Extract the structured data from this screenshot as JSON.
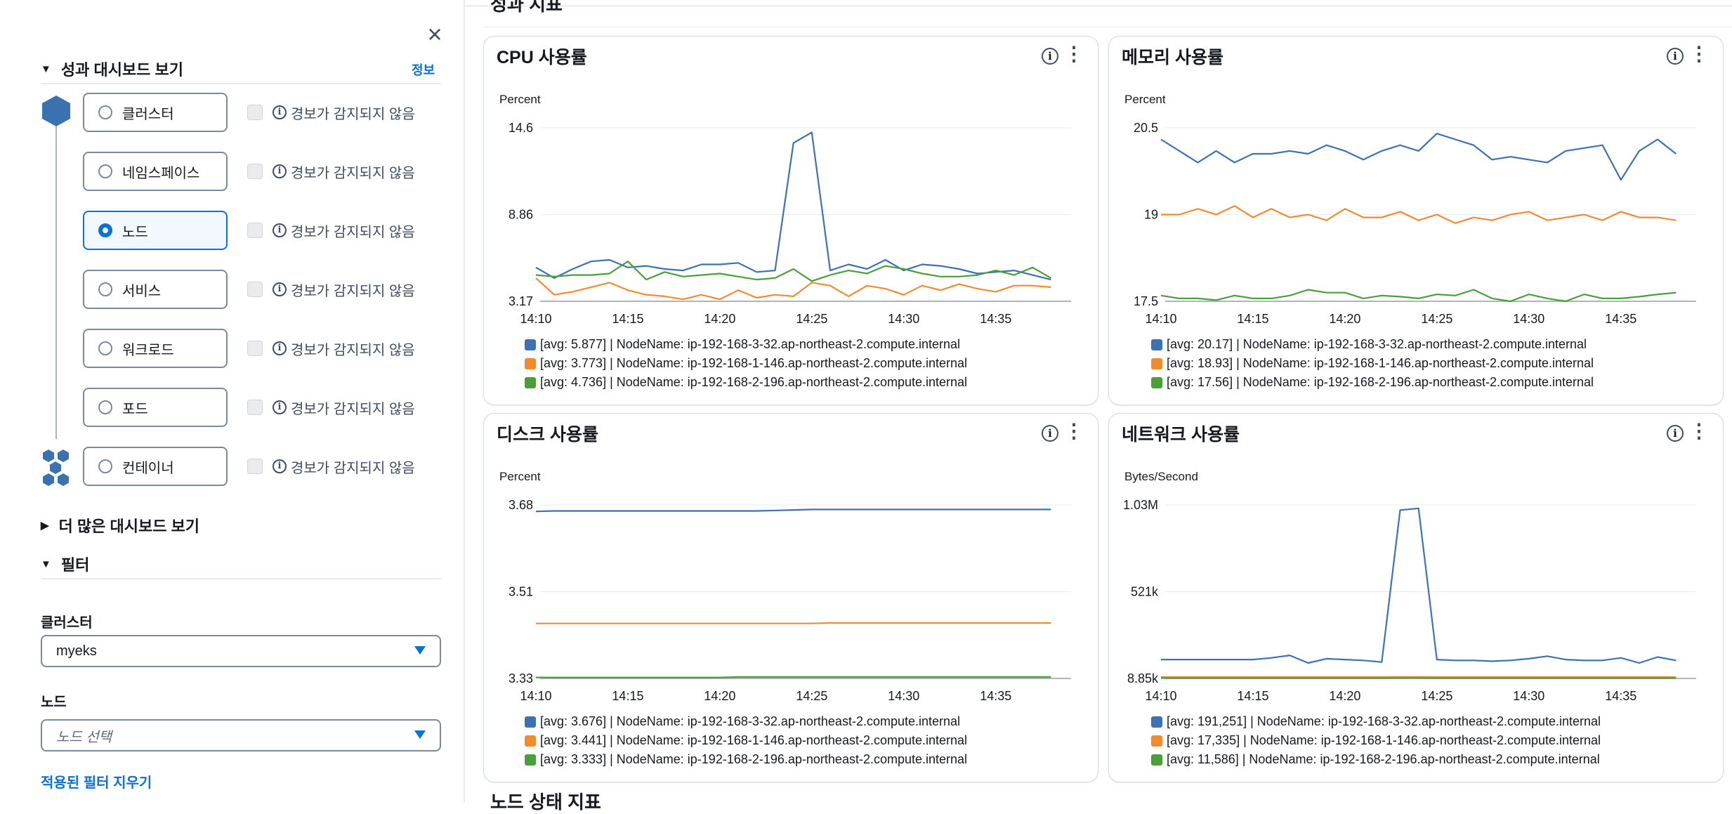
{
  "sidebar": {
    "perf_section": "성과 대시보드 보기",
    "info_link": "정보",
    "levels": [
      {
        "label": "클러스터",
        "alarm": "경보가 감지되지 않음",
        "selected": false
      },
      {
        "label": "네임스페이스",
        "alarm": "경보가 감지되지 않음",
        "selected": false
      },
      {
        "label": "노드",
        "alarm": "경보가 감지되지 않음",
        "selected": true
      },
      {
        "label": "서비스",
        "alarm": "경보가 감지되지 않음",
        "selected": false
      },
      {
        "label": "워크로드",
        "alarm": "경보가 감지되지 않음",
        "selected": false
      },
      {
        "label": "포드",
        "alarm": "경보가 감지되지 않음",
        "selected": false
      },
      {
        "label": "컨테이너",
        "alarm": "경보가 감지되지 않음",
        "selected": false
      }
    ],
    "more_section": "더 많은 대시보드 보기",
    "filter_section": "필터",
    "cluster_label": "클러스터",
    "cluster_value": "myeks",
    "node_label": "노드",
    "node_placeholder": "노드 선택",
    "clear_filters": "적용된 필터 지우기"
  },
  "main": {
    "section_title": "성과 지표",
    "next_section_title": "노드 상태 지표"
  },
  "colors": {
    "blue": "#3d71b2",
    "orange": "#f28b30",
    "green": "#4b9e3c",
    "accent": "#0972d3"
  },
  "chart_data": [
    {
      "type": "line",
      "title": "CPU 사용률",
      "ylabel": "Percent",
      "ylim": [
        3.17,
        14.6
      ],
      "yticks": [
        "14.6",
        "8.86",
        "3.17"
      ],
      "xticks": [
        "14:10",
        "14:15",
        "14:20",
        "14:25",
        "14:30",
        "14:35"
      ],
      "x": [
        "14:10",
        "14:11",
        "14:12",
        "14:13",
        "14:14",
        "14:15",
        "14:16",
        "14:17",
        "14:18",
        "14:19",
        "14:20",
        "14:21",
        "14:22",
        "14:23",
        "14:24",
        "14:25",
        "14:26",
        "14:27",
        "14:28",
        "14:29",
        "14:30",
        "14:31",
        "14:32",
        "14:33",
        "14:34",
        "14:35",
        "14:36",
        "14:37",
        "14:38"
      ],
      "series": [
        {
          "color": "#3d71b2",
          "legend": "[avg: 5.877] | NodeName: ip-192-168-3-32.ap-northeast-2.compute.internal",
          "values": [
            5.4,
            4.7,
            5.3,
            5.8,
            5.9,
            5.4,
            5.5,
            5.3,
            5.2,
            5.6,
            5.6,
            5.7,
            5.1,
            5.2,
            13.6,
            14.3,
            5.2,
            5.6,
            5.3,
            5.9,
            5.2,
            5.6,
            5.5,
            5.3,
            5.0,
            5.1,
            5.2,
            4.9,
            4.6
          ]
        },
        {
          "color": "#f28b30",
          "legend": "[avg: 3.773] | NodeName: ip-192-168-1-146.ap-northeast-2.compute.internal",
          "values": [
            4.7,
            3.6,
            3.8,
            4.1,
            4.4,
            3.9,
            3.6,
            3.5,
            3.3,
            3.6,
            3.3,
            3.9,
            3.4,
            3.6,
            3.5,
            4.4,
            4.2,
            3.5,
            4.2,
            4.0,
            3.6,
            4.2,
            3.9,
            4.3,
            4.0,
            3.8,
            4.2,
            4.2,
            4.1
          ]
        },
        {
          "color": "#4b9e3c",
          "legend": "[avg: 4.736] | NodeName: ip-192-168-2-196.ap-northeast-2.compute.internal",
          "values": [
            4.9,
            4.8,
            4.9,
            4.9,
            5.0,
            5.8,
            4.6,
            5.1,
            4.8,
            4.9,
            5.0,
            4.8,
            4.6,
            4.7,
            5.3,
            4.5,
            4.9,
            5.2,
            5.0,
            5.5,
            5.3,
            5.0,
            4.8,
            4.8,
            4.9,
            5.2,
            4.9,
            5.4,
            4.7
          ]
        }
      ]
    },
    {
      "type": "line",
      "title": "메모리 사용률",
      "ylabel": "Percent",
      "ylim": [
        17.5,
        20.5
      ],
      "yticks": [
        "20.5",
        "19",
        "17.5"
      ],
      "xticks": [
        "14:10",
        "14:15",
        "14:20",
        "14:25",
        "14:30",
        "14:35"
      ],
      "x": [
        "14:10",
        "14:11",
        "14:12",
        "14:13",
        "14:14",
        "14:15",
        "14:16",
        "14:17",
        "14:18",
        "14:19",
        "14:20",
        "14:21",
        "14:22",
        "14:23",
        "14:24",
        "14:25",
        "14:26",
        "14:27",
        "14:28",
        "14:29",
        "14:30",
        "14:31",
        "14:32",
        "14:33",
        "14:34",
        "14:35",
        "14:36",
        "14:37",
        "14:38"
      ],
      "series": [
        {
          "color": "#3d71b2",
          "legend": "[avg: 20.17] | NodeName: ip-192-168-3-32.ap-northeast-2.compute.internal",
          "values": [
            20.3,
            20.1,
            19.9,
            20.1,
            19.9,
            20.05,
            20.05,
            20.1,
            20.05,
            20.2,
            20.1,
            19.95,
            20.1,
            20.2,
            20.1,
            20.4,
            20.3,
            20.2,
            19.95,
            20.0,
            19.95,
            19.9,
            20.1,
            20.15,
            20.2,
            19.6,
            20.1,
            20.3,
            20.05
          ]
        },
        {
          "color": "#f28b30",
          "legend": "[avg: 18.93] | NodeName: ip-192-168-1-146.ap-northeast-2.compute.internal",
          "values": [
            19.0,
            19.0,
            19.1,
            19.0,
            19.15,
            18.95,
            19.1,
            18.95,
            19.0,
            18.9,
            19.1,
            18.95,
            18.95,
            19.05,
            18.9,
            19.0,
            18.85,
            18.95,
            18.9,
            19.0,
            19.05,
            18.9,
            18.95,
            19.0,
            18.9,
            19.05,
            18.95,
            18.95,
            18.9
          ]
        },
        {
          "color": "#4b9e3c",
          "legend": "[avg: 17.56] | NodeName: ip-192-168-2-196.ap-northeast-2.compute.internal",
          "values": [
            17.6,
            17.55,
            17.55,
            17.52,
            17.6,
            17.55,
            17.55,
            17.6,
            17.7,
            17.65,
            17.65,
            17.55,
            17.6,
            17.58,
            17.55,
            17.62,
            17.6,
            17.7,
            17.55,
            17.5,
            17.62,
            17.55,
            17.5,
            17.62,
            17.55,
            17.55,
            17.58,
            17.62,
            17.65
          ]
        }
      ]
    },
    {
      "type": "line",
      "title": "디스크 사용률",
      "ylabel": "Percent",
      "ylim": [
        3.33,
        3.68
      ],
      "yticks": [
        "3.68",
        "3.51",
        "3.33"
      ],
      "xticks": [
        "14:10",
        "14:15",
        "14:20",
        "14:25",
        "14:30",
        "14:35"
      ],
      "x": [
        "14:10",
        "14:11",
        "14:12",
        "14:13",
        "14:14",
        "14:15",
        "14:16",
        "14:17",
        "14:18",
        "14:19",
        "14:20",
        "14:21",
        "14:22",
        "14:23",
        "14:24",
        "14:25",
        "14:26",
        "14:27",
        "14:28",
        "14:29",
        "14:30",
        "14:31",
        "14:32",
        "14:33",
        "14:34",
        "14:35",
        "14:36",
        "14:37",
        "14:38"
      ],
      "series": [
        {
          "color": "#3d71b2",
          "legend": "[avg: 3.676] | NodeName: ip-192-168-3-32.ap-northeast-2.compute.internal",
          "values": [
            3.667,
            3.668,
            3.668,
            3.668,
            3.668,
            3.668,
            3.668,
            3.668,
            3.668,
            3.668,
            3.668,
            3.668,
            3.668,
            3.669,
            3.67,
            3.671,
            3.671,
            3.671,
            3.671,
            3.671,
            3.671,
            3.671,
            3.671,
            3.671,
            3.671,
            3.671,
            3.671,
            3.671,
            3.671
          ]
        },
        {
          "color": "#f28b30",
          "legend": "[avg: 3.441] | NodeName: ip-192-168-1-146.ap-northeast-2.compute.internal",
          "values": [
            3.441,
            3.441,
            3.441,
            3.441,
            3.441,
            3.441,
            3.441,
            3.441,
            3.441,
            3.441,
            3.441,
            3.441,
            3.441,
            3.441,
            3.441,
            3.441,
            3.442,
            3.442,
            3.442,
            3.442,
            3.442,
            3.442,
            3.442,
            3.442,
            3.442,
            3.442,
            3.442,
            3.442,
            3.442
          ]
        },
        {
          "color": "#4b9e3c",
          "legend": "[avg: 3.333] | NodeName: ip-192-168-2-196.ap-northeast-2.compute.internal",
          "values": [
            3.332,
            3.332,
            3.332,
            3.332,
            3.332,
            3.332,
            3.332,
            3.332,
            3.332,
            3.332,
            3.332,
            3.333,
            3.333,
            3.333,
            3.333,
            3.333,
            3.333,
            3.333,
            3.333,
            3.333,
            3.333,
            3.333,
            3.333,
            3.333,
            3.333,
            3.333,
            3.333,
            3.333,
            3.333
          ]
        }
      ]
    },
    {
      "type": "line",
      "title": "네트워크 사용률",
      "ylabel": "Bytes/Second",
      "ylim": [
        8850,
        1030000
      ],
      "yticks": [
        "1.03M",
        "521k",
        "8.85k"
      ],
      "xticks": [
        "14:10",
        "14:15",
        "14:20",
        "14:25",
        "14:30",
        "14:35"
      ],
      "x": [
        "14:10",
        "14:11",
        "14:12",
        "14:13",
        "14:14",
        "14:15",
        "14:16",
        "14:17",
        "14:18",
        "14:19",
        "14:20",
        "14:21",
        "14:22",
        "14:23",
        "14:24",
        "14:25",
        "14:26",
        "14:27",
        "14:28",
        "14:29",
        "14:30",
        "14:31",
        "14:32",
        "14:33",
        "14:34",
        "14:35",
        "14:36",
        "14:37",
        "14:38"
      ],
      "series": [
        {
          "color": "#3d71b2",
          "legend": "[avg: 191,251] | NodeName: ip-192-168-3-32.ap-northeast-2.compute.internal",
          "values": [
            120000,
            120000,
            120000,
            120000,
            120000,
            120000,
            130000,
            145000,
            100000,
            125000,
            120000,
            115000,
            105000,
            1000000,
            1010000,
            120000,
            115000,
            115000,
            110000,
            115000,
            125000,
            140000,
            120000,
            115000,
            115000,
            130000,
            100000,
            135000,
            115000
          ]
        },
        {
          "color": "#f28b30",
          "legend": "[avg: 17,335] | NodeName: ip-192-168-1-146.ap-northeast-2.compute.internal",
          "values": [
            17000,
            17000,
            17000,
            17000,
            17000,
            17000,
            17000,
            17000,
            17000,
            17000,
            17000,
            17000,
            17000,
            18000,
            18000,
            17000,
            17000,
            17000,
            17000,
            17000,
            17000,
            17000,
            17000,
            17000,
            17000,
            17000,
            17000,
            17000,
            17000
          ]
        },
        {
          "color": "#4b9e3c",
          "legend": "[avg: 11,586] | NodeName: ip-192-168-2-196.ap-northeast-2.compute.internal",
          "values": [
            11500,
            11500,
            11500,
            11500,
            11500,
            11500,
            11500,
            11500,
            11500,
            11500,
            11500,
            11500,
            11500,
            12000,
            12000,
            11500,
            11500,
            11500,
            11500,
            11500,
            11500,
            11500,
            11500,
            11500,
            11500,
            11500,
            11500,
            11500,
            11500
          ]
        }
      ]
    }
  ]
}
